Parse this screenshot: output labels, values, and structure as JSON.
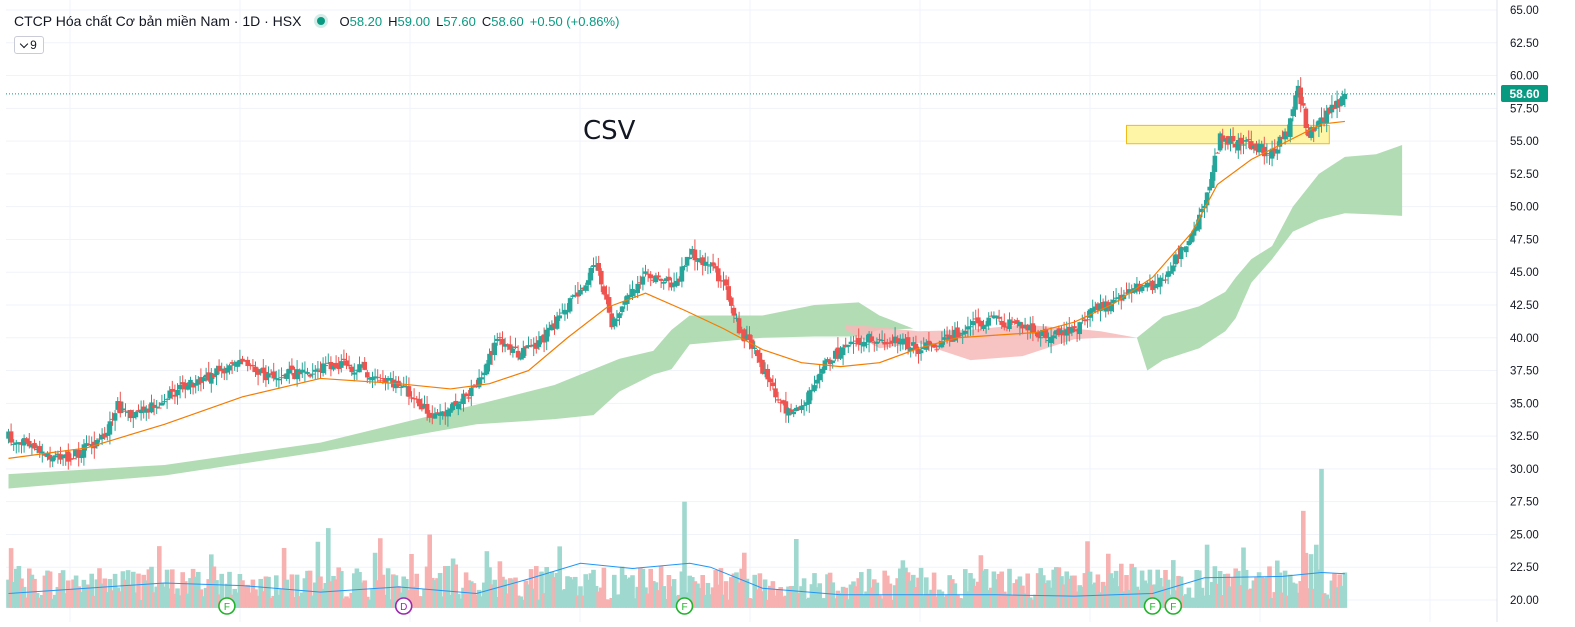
{
  "header": {
    "title": "CTCP Hóa chất Cơ bản miền Nam · 1D · HSX",
    "open_label": "O",
    "open": "58.20",
    "high_label": "H",
    "high": "59.00",
    "low_label": "L",
    "low": "57.60",
    "close_label": "C",
    "close": "58.60",
    "change": "+0.50 (+0.86%)",
    "indicator_count": "9"
  },
  "annotation": "CSV",
  "last_price_label": "58.60",
  "colors": {
    "up": "#26a69a",
    "down": "#ef5350",
    "volume_up": "#9fd8cf",
    "volume_down": "#f7b1b0",
    "cloud_bull": "#a5d6a7",
    "cloud_bear": "#f7b8b8",
    "ma": "#f57c00",
    "volume_ma": "#2196f3",
    "highlight_fill": "#fff59d",
    "highlight_stroke": "#f0b400",
    "last_price": "#089981"
  },
  "chart_data": {
    "type": "candlestick",
    "title": "",
    "yaxis": {
      "position": "right",
      "ticks": [
        "65.00",
        "62.50",
        "60.00",
        "57.50",
        "55.00",
        "52.50",
        "50.00",
        "47.50",
        "45.00",
        "42.50",
        "40.00",
        "37.50",
        "35.00",
        "32.50",
        "30.00",
        "27.50",
        "25.00",
        "22.50",
        "20.00"
      ],
      "range": [
        20.0,
        65.0
      ]
    },
    "grid": true,
    "last_price": 58.6,
    "price_path": [
      [
        0,
        32.5
      ],
      [
        10,
        31.5
      ],
      [
        22,
        30.8
      ],
      [
        35,
        32.0
      ],
      [
        42,
        34.8
      ],
      [
        50,
        34.0
      ],
      [
        62,
        35.6
      ],
      [
        75,
        36.9
      ],
      [
        88,
        38.2
      ],
      [
        100,
        37.1
      ],
      [
        115,
        37.4
      ],
      [
        128,
        38.1
      ],
      [
        140,
        37.2
      ],
      [
        150,
        36.4
      ],
      [
        158,
        35.0
      ],
      [
        164,
        33.8
      ],
      [
        170,
        34.6
      ],
      [
        180,
        36.2
      ],
      [
        188,
        39.7
      ],
      [
        196,
        38.8
      ],
      [
        204,
        39.6
      ],
      [
        212,
        41.5
      ],
      [
        220,
        43.8
      ],
      [
        226,
        45.7
      ],
      [
        232,
        41.0
      ],
      [
        238,
        43.3
      ],
      [
        246,
        44.8
      ],
      [
        256,
        43.8
      ],
      [
        262,
        46.5
      ],
      [
        268,
        45.8
      ],
      [
        275,
        44.2
      ],
      [
        281,
        40.7
      ],
      [
        287,
        38.8
      ],
      [
        295,
        35.7
      ],
      [
        300,
        34.4
      ],
      [
        306,
        35.0
      ],
      [
        314,
        38.1
      ],
      [
        322,
        39.2
      ],
      [
        330,
        39.9
      ],
      [
        340,
        39.9
      ],
      [
        350,
        39.2
      ],
      [
        360,
        39.6
      ],
      [
        370,
        41.2
      ],
      [
        380,
        41.4
      ],
      [
        390,
        40.8
      ],
      [
        400,
        40.0
      ],
      [
        410,
        40.7
      ],
      [
        420,
        42.4
      ],
      [
        430,
        43.4
      ],
      [
        436,
        43.9
      ],
      [
        442,
        43.9
      ],
      [
        448,
        45.6
      ],
      [
        454,
        47.5
      ],
      [
        460,
        50.0
      ],
      [
        463,
        52.5
      ],
      [
        466,
        55.5
      ],
      [
        470,
        55.0
      ],
      [
        478,
        54.6
      ],
      [
        486,
        54.1
      ],
      [
        492,
        55.8
      ],
      [
        496,
        59.1
      ],
      [
        500,
        55.5
      ],
      [
        505,
        56.7
      ],
      [
        510,
        57.5
      ],
      [
        514,
        58.6
      ]
    ],
    "price_ma_path": [
      [
        0,
        30.8
      ],
      [
        30,
        31.6
      ],
      [
        60,
        33.4
      ],
      [
        90,
        35.5
      ],
      [
        120,
        36.9
      ],
      [
        150,
        36.5
      ],
      [
        170,
        36.1
      ],
      [
        185,
        36.5
      ],
      [
        200,
        37.5
      ],
      [
        215,
        40.0
      ],
      [
        230,
        42.3
      ],
      [
        245,
        43.4
      ],
      [
        260,
        42.1
      ],
      [
        275,
        40.7
      ],
      [
        290,
        39.1
      ],
      [
        305,
        38.1
      ],
      [
        320,
        37.8
      ],
      [
        335,
        38.1
      ],
      [
        350,
        39.2
      ],
      [
        365,
        40.0
      ],
      [
        380,
        40.2
      ],
      [
        395,
        40.4
      ],
      [
        410,
        41.2
      ],
      [
        425,
        42.6
      ],
      [
        440,
        44.6
      ],
      [
        455,
        48.0
      ],
      [
        465,
        51.7
      ],
      [
        478,
        53.6
      ],
      [
        492,
        55.0
      ],
      [
        505,
        56.3
      ],
      [
        514,
        56.5
      ]
    ],
    "cloud_bull_segments": [
      {
        "upper": [
          [
            0,
            29.6
          ],
          [
            60,
            30.3
          ],
          [
            120,
            32.0
          ],
          [
            180,
            34.9
          ],
          [
            210,
            36.4
          ],
          [
            225,
            37.6
          ],
          [
            235,
            38.4
          ],
          [
            248,
            39.0
          ],
          [
            255,
            40.6
          ],
          [
            262,
            41.7
          ],
          [
            290,
            41.7
          ],
          [
            310,
            42.5
          ],
          [
            327,
            42.7
          ],
          [
            335,
            41.7
          ],
          [
            348,
            40.7
          ]
        ],
        "lower": [
          [
            0,
            28.5
          ],
          [
            60,
            29.5
          ],
          [
            120,
            31.3
          ],
          [
            180,
            33.4
          ],
          [
            210,
            33.8
          ],
          [
            225,
            34.1
          ],
          [
            235,
            35.9
          ],
          [
            248,
            37.2
          ],
          [
            255,
            37.6
          ],
          [
            262,
            39.5
          ],
          [
            290,
            40.0
          ],
          [
            310,
            40.1
          ],
          [
            327,
            40.1
          ],
          [
            335,
            40.6
          ],
          [
            348,
            40.7
          ]
        ]
      },
      {
        "upper": [
          [
            434,
            40.0
          ],
          [
            444,
            41.6
          ],
          [
            458,
            42.4
          ],
          [
            468,
            43.5
          ],
          [
            472,
            44.6
          ],
          [
            478,
            46.0
          ],
          [
            486,
            47.0
          ],
          [
            494,
            50.0
          ],
          [
            504,
            52.5
          ],
          [
            514,
            53.8
          ],
          [
            526,
            54.0
          ],
          [
            536,
            54.7
          ]
        ],
        "lower": [
          [
            434,
            40.0
          ],
          [
            438,
            37.5
          ],
          [
            444,
            38.3
          ],
          [
            458,
            39.2
          ],
          [
            468,
            40.5
          ],
          [
            472,
            41.5
          ],
          [
            478,
            44.2
          ],
          [
            486,
            46.0
          ],
          [
            494,
            48.1
          ],
          [
            504,
            49.0
          ],
          [
            514,
            49.5
          ],
          [
            526,
            49.4
          ],
          [
            536,
            49.3
          ]
        ]
      }
    ],
    "cloud_bear_segments": [
      {
        "upper": [
          [
            322,
            41.0
          ],
          [
            335,
            40.8
          ],
          [
            350,
            40.5
          ],
          [
            370,
            40.6
          ],
          [
            390,
            41.0
          ],
          [
            410,
            40.7
          ],
          [
            420,
            40.5
          ],
          [
            434,
            40.0
          ]
        ],
        "lower": [
          [
            322,
            40.6
          ],
          [
            335,
            39.2
          ],
          [
            350,
            39.6
          ],
          [
            370,
            38.3
          ],
          [
            390,
            38.6
          ],
          [
            410,
            39.9
          ],
          [
            420,
            40.0
          ],
          [
            434,
            40.0
          ]
        ]
      }
    ],
    "volume_ma_path": [
      [
        0,
        20.5
      ],
      [
        30,
        20.9
      ],
      [
        60,
        21.3
      ],
      [
        90,
        21.1
      ],
      [
        120,
        20.6
      ],
      [
        150,
        21.0
      ],
      [
        180,
        20.5
      ],
      [
        200,
        21.6
      ],
      [
        220,
        22.8
      ],
      [
        240,
        22.4
      ],
      [
        262,
        22.8
      ],
      [
        270,
        22.5
      ],
      [
        290,
        20.9
      ],
      [
        320,
        20.4
      ],
      [
        350,
        20.4
      ],
      [
        380,
        20.4
      ],
      [
        410,
        20.3
      ],
      [
        440,
        20.5
      ],
      [
        460,
        21.7
      ],
      [
        490,
        21.8
      ],
      [
        505,
        22.1
      ],
      [
        514,
        22.0
      ]
    ],
    "volume_spikes": [
      30.0,
      27.5,
      26.8
    ],
    "highlight_zone": [
      54.8,
      56.2
    ],
    "event_markers": [
      {
        "label": "F"
      },
      {
        "label": "D"
      },
      {
        "label": "F"
      },
      {
        "label": "F"
      },
      {
        "label": "F"
      }
    ]
  }
}
